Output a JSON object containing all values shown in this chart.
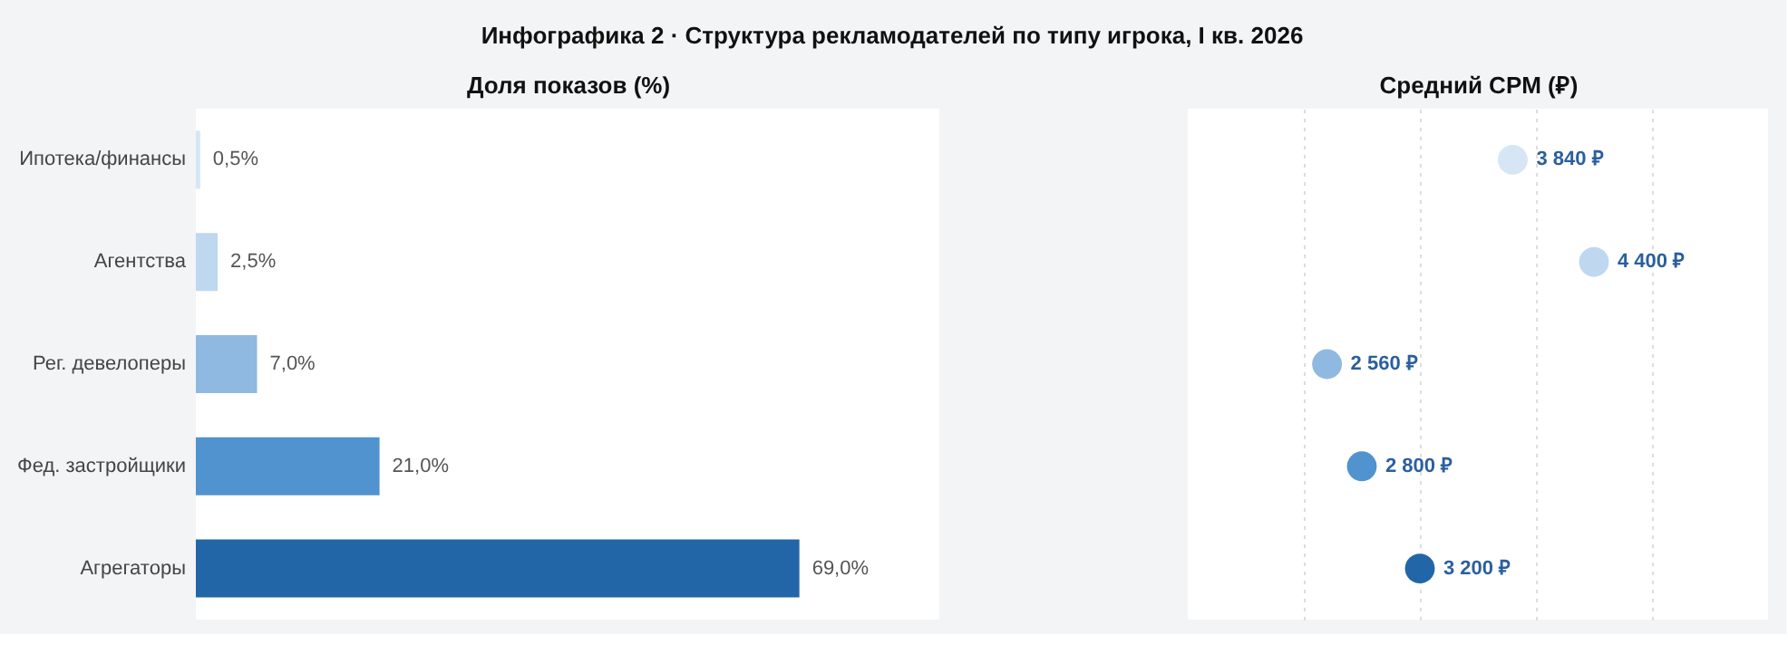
{
  "chart_data": [
    {
      "type": "bar",
      "orientation": "horizontal",
      "title": "Инфографика 2 · Структура рекламодателей по типу игрока, I кв. 2026",
      "xlabel": "Доля показов (%)",
      "categories": [
        "Ипотека/финансы",
        "Агентства",
        "Рег. девелоперы",
        "Фед. застройщики",
        "Агрегаторы"
      ],
      "values": [
        0.5,
        2.5,
        7.0,
        21.0,
        69.0
      ],
      "value_labels": [
        "0,5%",
        "2,5%",
        "7,0%",
        "21,0%",
        "69,0%"
      ],
      "colors": [
        "#d6e6f5",
        "#bfd8f0",
        "#8fb9e0",
        "#5093cf",
        "#2266a8"
      ],
      "xlim": [
        0,
        85
      ],
      "tick_labels": "y",
      "grid": false
    },
    {
      "type": "scatter",
      "orientation": "horizontal",
      "xlabel": "Средний CPM (₽)",
      "categories": [
        null,
        null,
        null,
        null,
        null
      ],
      "values": [
        3840,
        4400,
        2560,
        2800,
        3200
      ],
      "value_labels": [
        "3 840 ₽",
        "4 400 ₽",
        "2 560 ₽",
        "2 800 ₽",
        "3 200 ₽"
      ],
      "colors": [
        "#d6e6f5",
        "#bfd8f0",
        "#8fb9e0",
        "#5093cf",
        "#2266a8"
      ],
      "xlim": [
        1600,
        5600
      ],
      "xticks": [
        {
          "value": 2400,
          "label": null
        },
        {
          "value": 3200,
          "label": null
        },
        {
          "value": 4000,
          "label": null
        },
        {
          "value": 4800,
          "label": null
        }
      ],
      "tick_labels": false,
      "grid": "x",
      "marker": "circle"
    }
  ]
}
